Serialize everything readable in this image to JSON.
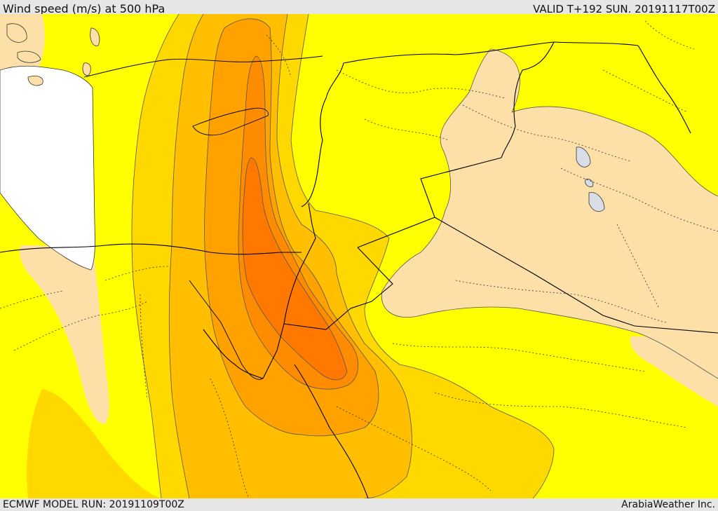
{
  "header": {
    "title": "Wind speed (m/s) at 500 hPa",
    "valid": "VALID T+192 SUN. 20191117T00Z"
  },
  "footer": {
    "model_run": "ECMWF MODEL RUN: 20191109T00Z",
    "credit": "ArabiaWeather Inc."
  },
  "colors": {
    "bands": [
      "#fde0a8",
      "#ffff00",
      "#ffd800",
      "#ffbe00",
      "#ffa200",
      "#ff8c00",
      "#ff7800"
    ],
    "sea_mask": "#ffffff",
    "lakes": "#d8dde6",
    "border_line": "#000000",
    "contour_line": "#555555"
  }
}
